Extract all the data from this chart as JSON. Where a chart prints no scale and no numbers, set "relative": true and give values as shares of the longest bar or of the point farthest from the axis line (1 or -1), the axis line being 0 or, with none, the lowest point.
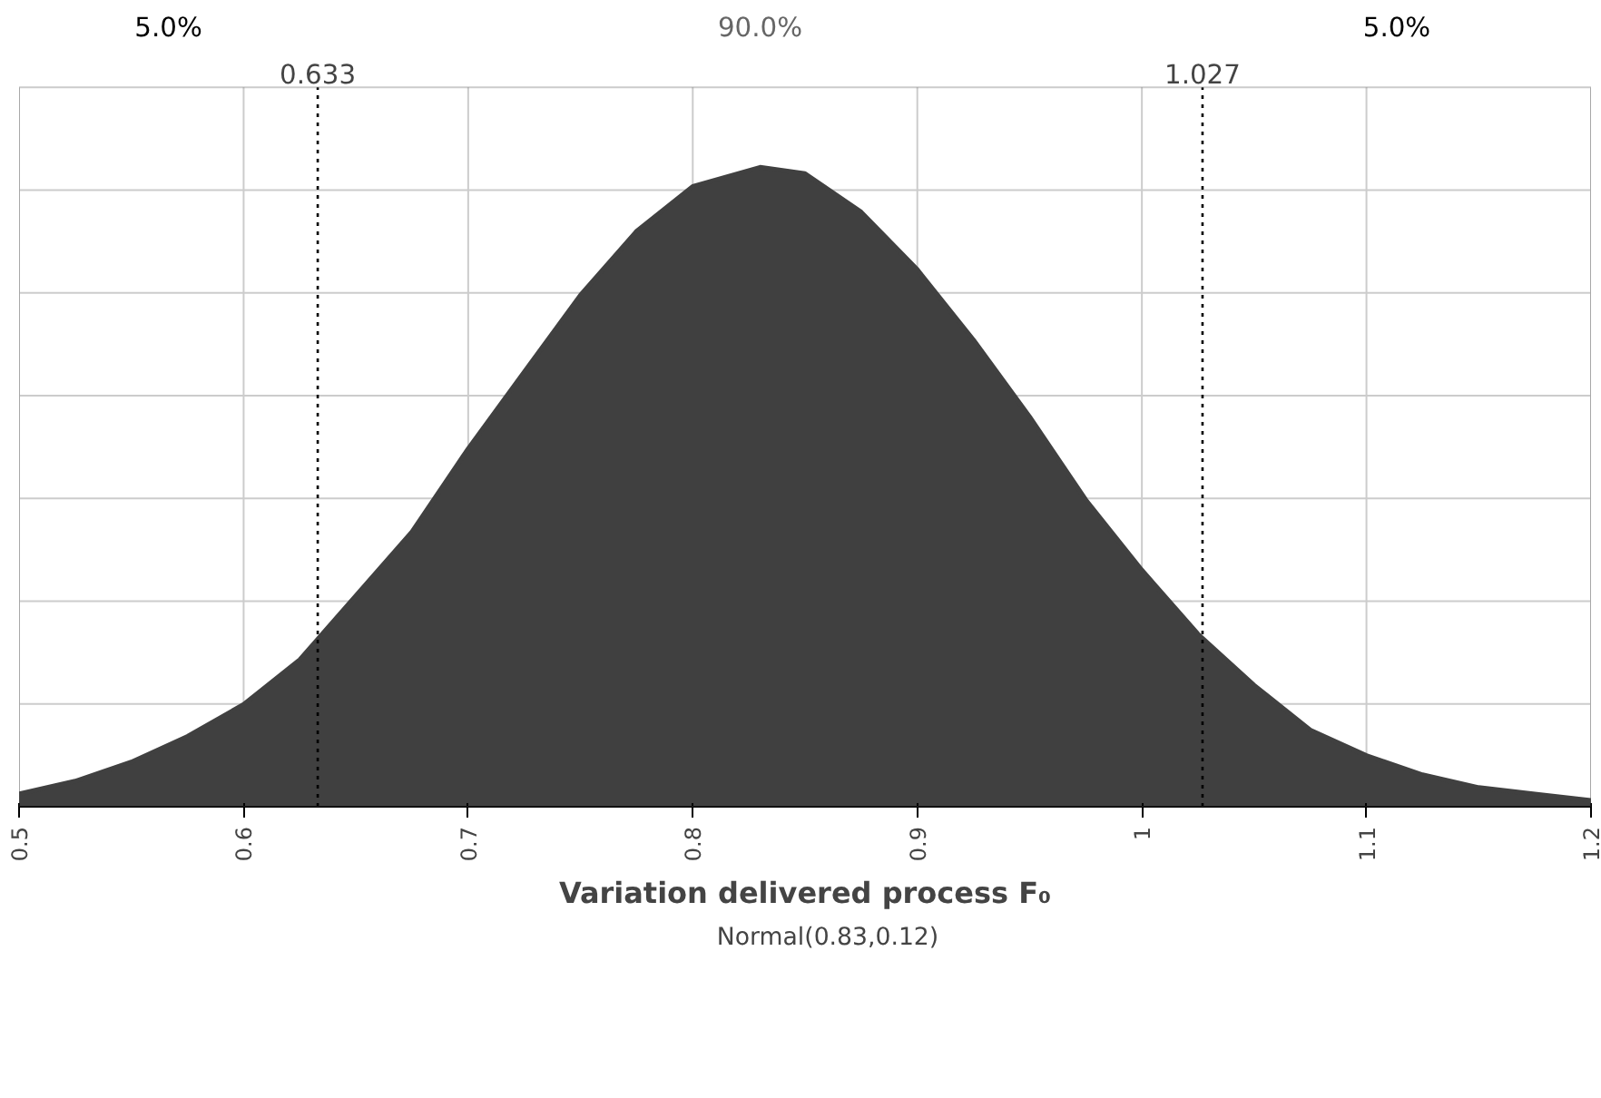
{
  "chart_data": {
    "type": "area",
    "relative": true,
    "xlabel": "Variation delivered process F₀",
    "x": [
      0.5,
      0.525,
      0.55,
      0.575,
      0.6,
      0.625,
      0.65,
      0.675,
      0.7,
      0.725,
      0.75,
      0.775,
      0.8,
      0.83,
      0.85,
      0.875,
      0.9,
      0.925,
      0.95,
      0.975,
      1.0,
      1.025,
      1.05,
      1.075,
      1.1,
      1.125,
      1.15,
      1.175,
      1.2
    ],
    "series": [
      {
        "name": "Normal(0.83,0.12)",
        "color": "#404040",
        "values": [
          0.02,
          0.04,
          0.07,
          0.11,
          0.16,
          0.23,
          0.33,
          0.43,
          0.56,
          0.68,
          0.8,
          0.9,
          0.97,
          1,
          0.99,
          0.93,
          0.84,
          0.73,
          0.61,
          0.48,
          0.37,
          0.27,
          0.19,
          0.12,
          0.08,
          0.05,
          0.03,
          0.02,
          0.01
        ]
      }
    ],
    "xlim": [
      0.5,
      1.2
    ],
    "xticks": [
      0.5,
      0.6,
      0.7,
      0.8,
      0.9,
      1,
      1.1,
      1.2
    ],
    "ref_lines": [
      {
        "axis": "x",
        "value": 0.633,
        "label": "0.633",
        "line_style": "dotted"
      },
      {
        "axis": "x",
        "value": 1.027,
        "label": "1.027",
        "line_style": "dotted"
      }
    ],
    "annotations": [
      "5.0%",
      "90.0%",
      "5.0%"
    ],
    "grid": true,
    "legend": "bottom"
  }
}
